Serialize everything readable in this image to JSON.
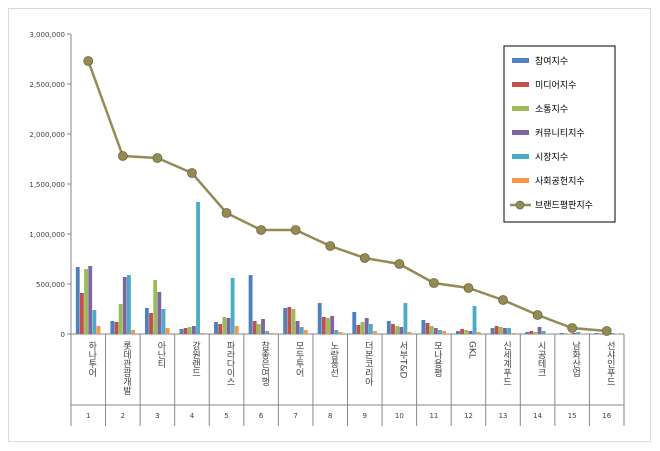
{
  "chart_data": {
    "type": "bar",
    "categories": [
      "하나투어",
      "롯데관광개발",
      "아난티",
      "강원랜드",
      "파라다이스",
      "참좋은여행",
      "모두투어",
      "노랑풍선",
      "더본코리아",
      "서부T&D",
      "모나용평",
      "GKL",
      "신세계푸드",
      "시공테크",
      "남화산업",
      "선샤인푸드"
    ],
    "category_numbers": [
      "1",
      "2",
      "3",
      "4",
      "5",
      "6",
      "7",
      "8",
      "9",
      "10",
      "11",
      "12",
      "13",
      "14",
      "15",
      "16"
    ],
    "ylim": [
      0,
      3000000
    ],
    "yticks": [
      0,
      500000,
      1000000,
      1500000,
      2000000,
      2500000,
      3000000
    ],
    "ytick_labels": [
      "0",
      "500,000",
      "1,000,000",
      "1,500,000",
      "2,000,000",
      "2,500,000",
      "3,000,000"
    ],
    "legend_position": "top-right",
    "grid": false,
    "series": [
      {
        "name": "참여지수",
        "kind": "bar",
        "color": "#4f81bd",
        "values": [
          670000,
          130000,
          260000,
          50000,
          120000,
          590000,
          260000,
          310000,
          220000,
          130000,
          140000,
          30000,
          60000,
          20000,
          10000,
          10000
        ]
      },
      {
        "name": "미디어지수",
        "kind": "bar",
        "color": "#c0504d",
        "values": [
          410000,
          120000,
          210000,
          60000,
          100000,
          130000,
          270000,
          170000,
          90000,
          100000,
          110000,
          50000,
          80000,
          30000,
          5000,
          5000
        ]
      },
      {
        "name": "소통지수",
        "kind": "bar",
        "color": "#9bbb59",
        "values": [
          650000,
          300000,
          540000,
          70000,
          170000,
          100000,
          250000,
          160000,
          120000,
          80000,
          80000,
          40000,
          70000,
          20000,
          5000,
          5000
        ]
      },
      {
        "name": "커뮤니티지수",
        "kind": "bar",
        "color": "#8064a2",
        "values": [
          680000,
          570000,
          420000,
          80000,
          160000,
          150000,
          130000,
          180000,
          160000,
          70000,
          60000,
          30000,
          60000,
          70000,
          10000,
          10000
        ]
      },
      {
        "name": "시장지수",
        "kind": "bar",
        "color": "#4bacc6",
        "values": [
          240000,
          590000,
          250000,
          1320000,
          560000,
          30000,
          70000,
          40000,
          100000,
          310000,
          40000,
          280000,
          60000,
          30000,
          20000,
          10000
        ]
      },
      {
        "name": "사회공헌지수",
        "kind": "bar",
        "color": "#f79646",
        "values": [
          80000,
          40000,
          60000,
          10000,
          80000,
          10000,
          40000,
          20000,
          30000,
          20000,
          30000,
          20000,
          10000,
          5000,
          5000,
          5000
        ]
      },
      {
        "name": "브랜드평판지수",
        "kind": "line",
        "color": "#948a54",
        "values": [
          2730000,
          1780000,
          1760000,
          1610000,
          1210000,
          1040000,
          1040000,
          880000,
          760000,
          700000,
          510000,
          460000,
          340000,
          190000,
          60000,
          30000
        ]
      }
    ]
  }
}
